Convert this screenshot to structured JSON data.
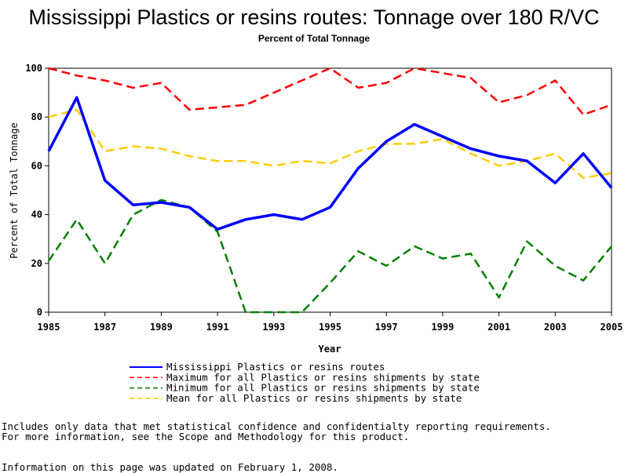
{
  "title": "Mississippi Plastics or resins routes: Tonnage over 180 R/VC",
  "subtitle": "Percent of Total Tonnage",
  "chart_data": {
    "type": "line",
    "title": "Mississippi Plastics or resins routes: Tonnage over 180 R/VC",
    "subtitle": "Percent of Total Tonnage",
    "xlabel": "Year",
    "ylabel": "Percent of Total Tonnage",
    "xlim": [
      1985,
      2005
    ],
    "ylim": [
      0,
      100
    ],
    "x_ticks": [
      "1985",
      "1987",
      "1989",
      "1991",
      "1993",
      "1995",
      "1997",
      "1999",
      "2001",
      "2003",
      "2005"
    ],
    "y_ticks": [
      "0",
      "20",
      "40",
      "60",
      "80",
      "100"
    ],
    "grid": false,
    "legend_position": "bottom",
    "x": [
      1985,
      1986,
      1987,
      1988,
      1989,
      1990,
      1991,
      1992,
      1993,
      1994,
      1995,
      1996,
      1997,
      1998,
      1999,
      2000,
      2001,
      2002,
      2003,
      2004,
      2005
    ],
    "series": [
      {
        "name": "Mississippi Plastics or resins routes",
        "color": "#0000ff",
        "style": "solid",
        "values": [
          66,
          88,
          54,
          44,
          45,
          43,
          34,
          38,
          40,
          38,
          43,
          59,
          70,
          77,
          72,
          67,
          64,
          62,
          53,
          65,
          51
        ]
      },
      {
        "name": "Maximum for all Plastics or resins shipments by state",
        "color": "#ff0000",
        "style": "dashed",
        "values": [
          100,
          97,
          95,
          92,
          94,
          83,
          84,
          85,
          90,
          95,
          100,
          92,
          94,
          100,
          98,
          96,
          86,
          89,
          95,
          81,
          85
        ]
      },
      {
        "name": "Minimum for all Plastics or resins shipments by state",
        "color": "#008000",
        "style": "dashed",
        "values": [
          21,
          38,
          20,
          40,
          46,
          43,
          33,
          0,
          0,
          0,
          12,
          25,
          19,
          27,
          22,
          24,
          6,
          29,
          19,
          13,
          27
        ]
      },
      {
        "name": "Mean for all Plastics or resins shipments by state",
        "color": "#ffcc00",
        "style": "dashed",
        "values": [
          80,
          83,
          66,
          68,
          67,
          64,
          62,
          62,
          60,
          62,
          61,
          66,
          69,
          69,
          71,
          65,
          60,
          62,
          65,
          55,
          57
        ]
      }
    ]
  },
  "notes": {
    "line1": "Includes only data that met statistical confidence and confidentialty reporting requirements.",
    "line2": "For more information, see the Scope and Methodology for this product.",
    "line3": "Information on this page was updated on February 1, 2008."
  }
}
